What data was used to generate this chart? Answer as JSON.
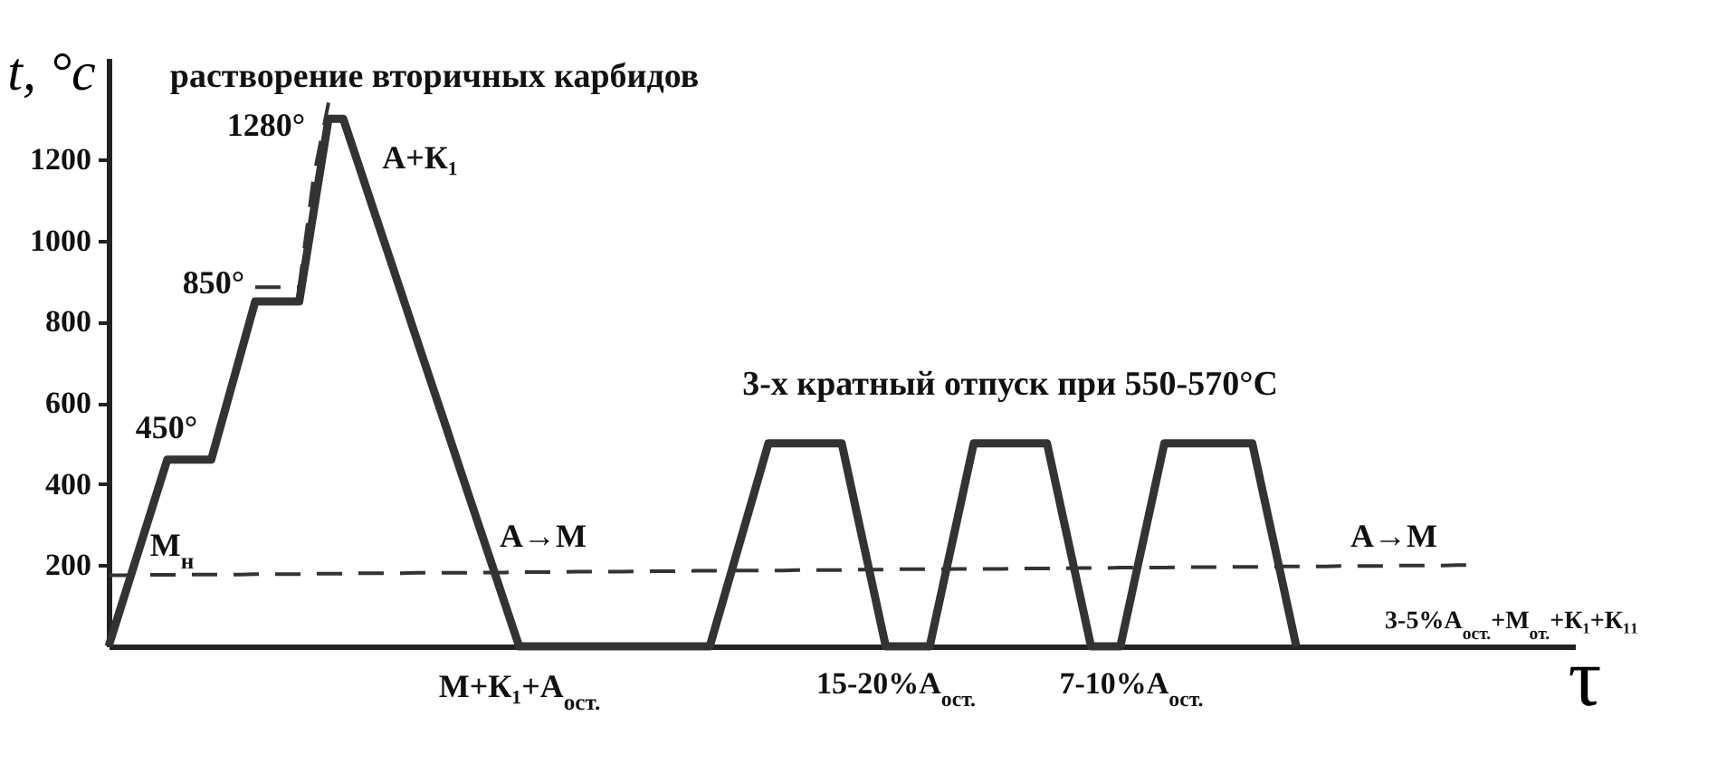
{
  "chart_data": {
    "type": "line",
    "ylabel": "t, °c",
    "xlabel": "τ",
    "ylim": [
      0,
      1450
    ],
    "yticks": [
      200,
      400,
      600,
      800,
      1000,
      1200
    ],
    "tick_labels": "y",
    "grid": false,
    "categories": [
      null,
      null,
      null,
      null,
      null,
      null,
      null,
      null,
      null,
      null,
      null,
      null,
      null,
      null,
      null,
      null,
      null,
      null,
      null,
      null,
      null,
      null,
      null,
      null,
      null,
      null,
      null,
      null,
      null,
      null,
      null,
      null,
      null,
      null,
      null,
      null,
      null,
      null,
      null,
      null,
      null,
      null,
      null,
      null,
      null,
      null,
      null,
      null,
      null,
      null,
      null,
      null,
      null,
      null,
      null,
      null,
      null,
      null,
      null,
      null,
      null,
      null,
      null,
      null,
      null,
      null,
      null,
      null,
      null,
      null,
      null,
      null,
      null,
      null,
      null,
      null,
      null,
      null,
      null,
      null,
      null,
      null,
      null,
      null,
      null,
      null,
      null,
      null,
      null,
      null,
      null,
      null,
      null,
      null,
      null,
      null,
      null,
      null,
      null,
      null,
      null
    ],
    "series": [
      {
        "color": "#333333",
        "line_style": "solid",
        "values": [
          0,
          115,
          230,
          345,
          460,
          460,
          460,
          460,
          590,
          720,
          850,
          850,
          850,
          850,
          1075,
          1300,
          1300,
          1192,
          1083,
          975,
          867,
          758,
          650,
          542,
          433,
          325,
          217,
          108,
          0,
          0,
          0,
          0,
          0,
          0,
          0,
          0,
          0,
          0,
          0,
          0,
          0,
          0,
          125,
          250,
          375,
          500,
          500,
          500,
          500,
          500,
          500,
          333,
          167,
          0,
          0,
          0,
          0,
          167,
          333,
          500,
          500,
          500,
          500,
          500,
          500,
          333,
          167,
          0,
          0,
          0,
          167,
          333,
          500,
          500,
          500,
          500,
          500,
          500,
          500,
          333,
          167,
          0,
          null,
          null,
          null,
          null,
          null,
          null,
          null,
          null,
          null,
          null,
          null,
          null,
          null,
          null,
          null,
          null,
          null,
          null,
          null
        ]
      },
      {
        "color": "#333333",
        "line_style": "dashed",
        "values": [
          175,
          175,
          176,
          176,
          176,
          176,
          177,
          177,
          177,
          177,
          178,
          178,
          178,
          178,
          179,
          179,
          179,
          180,
          180,
          180,
          180,
          181,
          181,
          181,
          181,
          182,
          182,
          182,
          183,
          183,
          183,
          183,
          184,
          184,
          184,
          184,
          185,
          185,
          185,
          185,
          186,
          186,
          186,
          187,
          187,
          187,
          187,
          188,
          188,
          188,
          188,
          189,
          189,
          189,
          190,
          190,
          190,
          190,
          191,
          191,
          191,
          191,
          192,
          192,
          192,
          192,
          193,
          193,
          193,
          194,
          194,
          194,
          194,
          195,
          195,
          195,
          195,
          196,
          196,
          196,
          197,
          197,
          197,
          197,
          198,
          198,
          198,
          198,
          199,
          199,
          199,
          199,
          200,
          200,
          null,
          null,
          null,
          null,
          null,
          null,
          null
        ]
      },
      {
        "color": "#333333",
        "line_style": "dashed",
        "values": [
          null,
          null,
          null,
          null,
          null,
          null,
          null,
          null,
          null,
          null,
          885,
          885,
          885,
          885,
          1160,
          1340,
          null,
          null,
          null,
          null,
          null,
          null,
          null,
          null,
          null,
          null,
          null,
          null,
          null,
          null,
          null,
          null,
          null,
          null,
          null,
          null,
          null,
          null,
          null,
          null,
          null,
          null,
          null,
          null,
          null,
          null,
          null,
          null,
          null,
          null,
          null,
          null,
          null,
          null,
          null,
          null,
          null,
          null,
          null,
          null,
          null,
          null,
          null,
          null,
          null,
          null,
          null,
          null,
          null,
          null,
          null,
          null,
          null,
          null,
          null,
          null,
          null,
          null,
          null,
          null,
          null,
          null,
          null,
          null,
          null,
          null,
          null,
          null,
          null,
          null,
          null,
          null,
          null,
          null,
          null,
          null,
          null,
          null,
          null,
          null,
          null
        ]
      }
    ],
    "annotations": [
      "растворение вторичных карбидов",
      "3-х кратный отпуск при 550-570°C",
      "М+К₁+А$_{ост.}$",
      "15-20%А$_{ост.}$",
      "7-10%А$_{ост.}$",
      "3-5%А$_{ост.}$+М$_{от.}$+К₁+К₁₁",
      "1280°",
      "850°",
      "450°",
      "А+К₁",
      "М$_{н}$",
      "А→М",
      "А→М"
    ]
  }
}
